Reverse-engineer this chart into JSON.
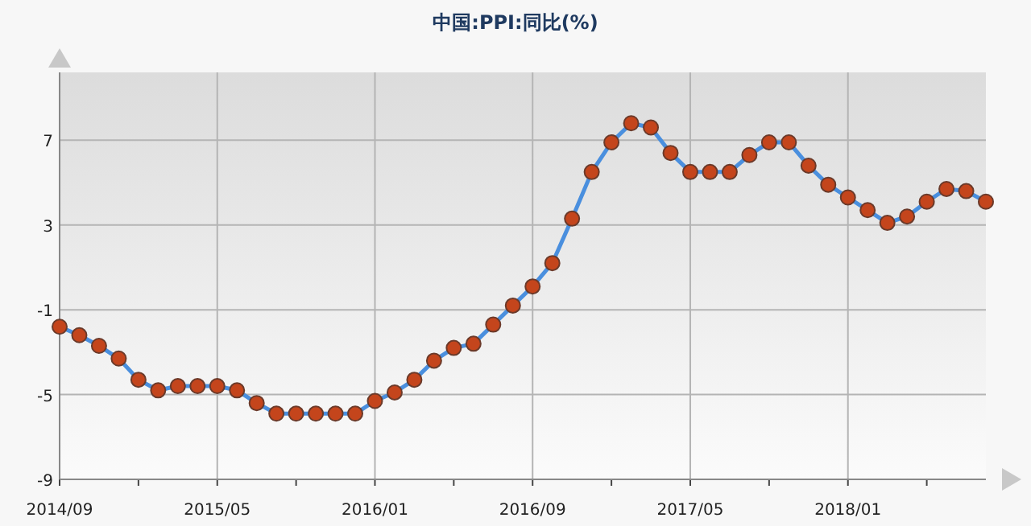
{
  "chart_data": {
    "type": "line",
    "title": "中国:PPI:同比(%)",
    "x": [
      "2014-09",
      "2014-10",
      "2014-11",
      "2014-12",
      "2015-01",
      "2015-02",
      "2015-03",
      "2015-04",
      "2015-05",
      "2015-06",
      "2015-07",
      "2015-08",
      "2015-09",
      "2015-10",
      "2015-11",
      "2015-12",
      "2016-01",
      "2016-02",
      "2016-03",
      "2016-04",
      "2016-05",
      "2016-06",
      "2016-07",
      "2016-08",
      "2016-09",
      "2016-10",
      "2016-11",
      "2016-12",
      "2017-01",
      "2017-02",
      "2017-03",
      "2017-04",
      "2017-05",
      "2017-06",
      "2017-07",
      "2017-08",
      "2017-09",
      "2017-10",
      "2017-11",
      "2017-12",
      "2018-01",
      "2018-02",
      "2018-03",
      "2018-04",
      "2018-05",
      "2018-06",
      "2018-07",
      "2018-08"
    ],
    "series": [
      {
        "color": "#4a8fde",
        "values": [
          -1.8,
          -2.2,
          -2.7,
          -3.3,
          -4.3,
          -4.8,
          -4.6,
          -4.6,
          -4.6,
          -4.8,
          -5.4,
          -5.9,
          -5.9,
          -5.9,
          -5.9,
          -5.9,
          -5.3,
          -4.9,
          -4.3,
          -3.4,
          -2.8,
          -2.6,
          -1.7,
          -0.8,
          0.1,
          1.2,
          3.3,
          5.5,
          6.9,
          7.8,
          7.6,
          6.4,
          5.5,
          5.5,
          5.5,
          6.3,
          6.9,
          6.9,
          5.8,
          4.9,
          4.3,
          3.7,
          3.1,
          3.4,
          4.1,
          4.7,
          4.6,
          4.1
        ]
      }
    ],
    "marker": "circle",
    "xlim": [
      "2014-09",
      "2018-08"
    ],
    "xticks": [
      {
        "value": "2014-09",
        "label": "2014/09"
      },
      {
        "value": "2015-01",
        "label": null
      },
      {
        "value": "2015-05",
        "label": "2015/05"
      },
      {
        "value": "2015-09",
        "label": null
      },
      {
        "value": "2016-01",
        "label": "2016/01"
      },
      {
        "value": "2016-05",
        "label": null
      },
      {
        "value": "2016-09",
        "label": "2016/09"
      },
      {
        "value": "2017-01",
        "label": null
      },
      {
        "value": "2017-05",
        "label": "2017/05"
      },
      {
        "value": "2017-09",
        "label": null
      },
      {
        "value": "2018-01",
        "label": "2018/01"
      },
      {
        "value": "2018-05",
        "label": null
      }
    ],
    "ylim": [
      -9,
      10.2
    ],
    "yticks": [
      -9,
      -5,
      -1,
      3,
      7
    ],
    "grid": true
  }
}
